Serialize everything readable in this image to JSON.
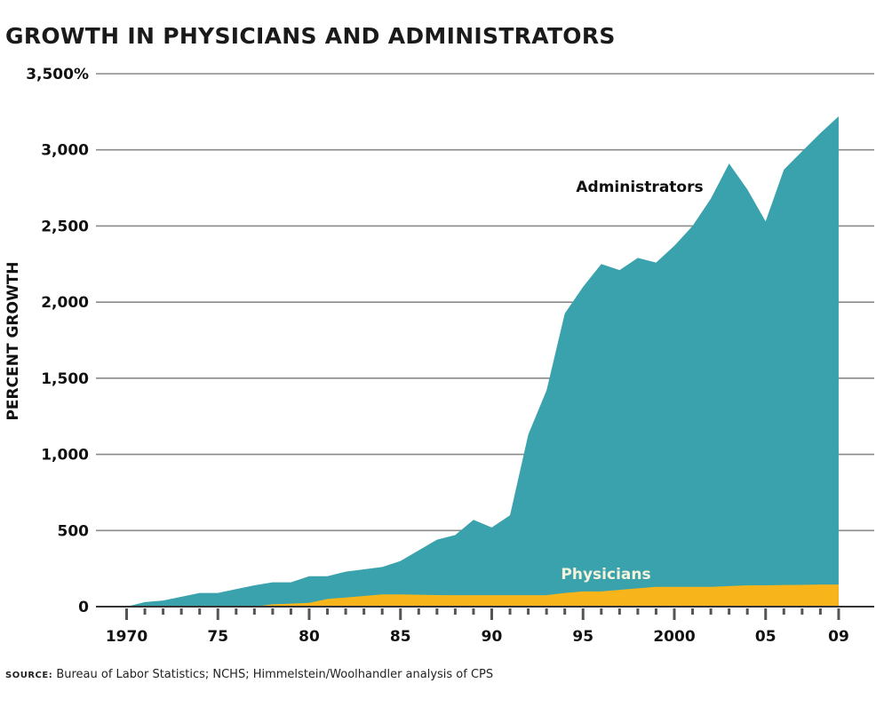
{
  "chart_data": {
    "type": "area",
    "title": "GROWTH IN PHYSICIANS AND ADMINISTRATORS",
    "ylabel": "PERCENT GROWTH",
    "xlabel": "",
    "ylim": [
      0,
      3500
    ],
    "xlim": [
      1970,
      2009
    ],
    "yticks": [
      0,
      500,
      1000,
      1500,
      2000,
      2500,
      3000,
      3500
    ],
    "ytick_labels": [
      "0",
      "500",
      "1,000",
      "1,500",
      "2,000",
      "2,500",
      "3,000",
      "3,500%"
    ],
    "xticks": [
      1970,
      1975,
      1980,
      1985,
      1990,
      1995,
      2000,
      2005,
      2009
    ],
    "xtick_labels": [
      "1970",
      "75",
      "80",
      "85",
      "90",
      "95",
      "2000",
      "05",
      "09"
    ],
    "grid": true,
    "x": [
      1970,
      1971,
      1972,
      1973,
      1974,
      1975,
      1976,
      1977,
      1978,
      1979,
      1980,
      1981,
      1982,
      1983,
      1984,
      1985,
      1986,
      1987,
      1988,
      1989,
      1990,
      1991,
      1992,
      1993,
      1994,
      1995,
      1996,
      1997,
      1998,
      1999,
      2000,
      2001,
      2002,
      2003,
      2004,
      2005,
      2006,
      2007,
      2008,
      2009
    ],
    "series": [
      {
        "name": "Administrators",
        "color": "#3aa2ac",
        "values": [
          0,
          30,
          40,
          65,
          90,
          90,
          115,
          140,
          160,
          160,
          200,
          200,
          230,
          245,
          260,
          300,
          370,
          440,
          470,
          570,
          520,
          600,
          1130,
          1420,
          1925,
          2100,
          2250,
          2210,
          2290,
          2260,
          2370,
          2500,
          2680,
          2910,
          2740,
          2530,
          2870,
          2990,
          3110,
          3220
        ]
      },
      {
        "name": "Physicians",
        "color": "#f7b51b",
        "values": [
          0,
          0,
          0,
          0,
          0,
          0,
          0,
          0,
          15,
          20,
          25,
          50,
          60,
          70,
          80,
          80,
          78,
          76,
          75,
          75,
          75,
          75,
          75,
          75,
          90,
          100,
          100,
          110,
          120,
          130,
          130,
          130,
          130,
          135,
          140,
          140,
          142,
          143,
          145,
          145
        ]
      }
    ]
  },
  "source": {
    "label": "SOURCE:",
    "text": " Bureau of Labor Statistics; NCHS; Himmelstein/Woolhandler analysis of CPS"
  }
}
